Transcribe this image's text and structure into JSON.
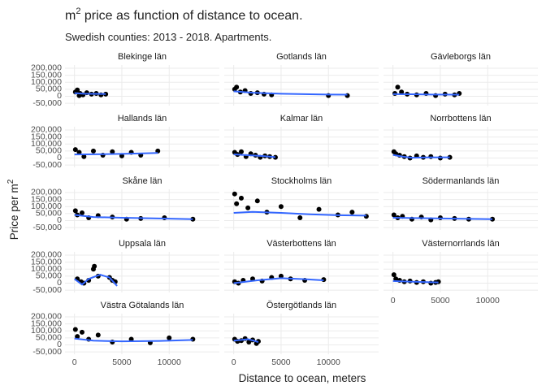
{
  "chart_data": {
    "type": "scatter",
    "title": {
      "base": "m",
      "sup": "2",
      "rest": " price as function of distance to ocean."
    },
    "subtitle": "Swedish counties: 2013 - 2018. Apartments.",
    "x_label": "Distance to ocean, meters",
    "y_label": {
      "base": "Price per m",
      "sup": "2"
    },
    "xlim": [
      -1000,
      15300
    ],
    "ylim": [
      -67000,
      223000
    ],
    "xticks": [
      0,
      5000,
      10000
    ],
    "yticks": [
      {
        "value": -50000,
        "label": "-50,000"
      },
      0,
      {
        "value": 50000,
        "label": "50,000"
      },
      {
        "value": 100000,
        "label": "100,000"
      },
      {
        "value": 150000,
        "label": "150,000"
      },
      {
        "value": 200000,
        "label": "200,000"
      }
    ],
    "grid": true,
    "point_color": "#000000",
    "line_color": "#3366ff",
    "facets": [
      {
        "name": "Blekinge län",
        "x": [
          100,
          300,
          600,
          900,
          1300,
          1800,
          2300,
          2800,
          3300,
          500
        ],
        "y": [
          30000,
          45000,
          20000,
          10000,
          25000,
          15000,
          20000,
          10000,
          15000,
          5000
        ],
        "smooth_x": [
          0,
          1000,
          2000,
          3300
        ],
        "smooth_y": [
          22000,
          18000,
          17000,
          16000
        ]
      },
      {
        "name": "Gotlands län",
        "x": [
          100,
          300,
          700,
          1200,
          1800,
          2500,
          3200,
          4000,
          10000,
          12000
        ],
        "y": [
          50000,
          65000,
          30000,
          40000,
          20000,
          25000,
          15000,
          10000,
          5000,
          5000
        ],
        "smooth_x": [
          0,
          2000,
          5000,
          10000,
          12000
        ],
        "smooth_y": [
          35000,
          25000,
          18000,
          12000,
          11000
        ]
      },
      {
        "name": "Gävleborgs län",
        "x": [
          200,
          500,
          900,
          1500,
          2500,
          3500,
          4500,
          5500,
          6500,
          7000
        ],
        "y": [
          20000,
          65000,
          30000,
          15000,
          10000,
          20000,
          5000,
          15000,
          10000,
          20000
        ],
        "smooth_x": [
          0,
          2000,
          4000,
          7000
        ],
        "smooth_y": [
          15000,
          14000,
          12000,
          11000
        ]
      },
      {
        "name": "Hallands län",
        "x": [
          100,
          500,
          1000,
          2000,
          3000,
          4000,
          5000,
          6000,
          7000,
          8800
        ],
        "y": [
          60000,
          40000,
          10000,
          50000,
          20000,
          45000,
          15000,
          40000,
          20000,
          50000
        ],
        "smooth_x": [
          0,
          3000,
          6000,
          8800
        ],
        "smooth_y": [
          25000,
          27000,
          31000,
          36000
        ]
      },
      {
        "name": "Kalmar län",
        "x": [
          100,
          400,
          800,
          1300,
          1800,
          2300,
          2800,
          3300,
          3800,
          4400
        ],
        "y": [
          40000,
          25000,
          45000,
          10000,
          30000,
          20000,
          5000,
          15000,
          10000,
          5000
        ],
        "smooth_x": [
          0,
          1500,
          3000,
          4400
        ],
        "smooth_y": [
          26000,
          20000,
          14000,
          6000
        ]
      },
      {
        "name": "Norrbottens län",
        "x": [
          100,
          300,
          700,
          1200,
          1800,
          2500,
          3200,
          4000,
          5000,
          6000
        ],
        "y": [
          45000,
          30000,
          20000,
          10000,
          0,
          15000,
          5000,
          10000,
          0,
          5000
        ],
        "smooth_x": [
          0,
          1000,
          2000,
          3500,
          6000
        ],
        "smooth_y": [
          22000,
          10000,
          2000,
          4000,
          5000
        ]
      },
      {
        "name": "Skåne län",
        "x": [
          100,
          300,
          800,
          1500,
          2500,
          4000,
          5500,
          7000,
          9500,
          12500
        ],
        "y": [
          70000,
          40000,
          55000,
          20000,
          35000,
          25000,
          10000,
          15000,
          20000,
          10000
        ],
        "smooth_x": [
          0,
          2000,
          5000,
          9000,
          12500
        ],
        "smooth_y": [
          40000,
          25000,
          20000,
          15000,
          10000
        ]
      },
      {
        "name": "Stockholms län",
        "x": [
          100,
          300,
          800,
          1500,
          2500,
          3500,
          5000,
          7000,
          9000,
          11000,
          12500,
          14000
        ],
        "y": [
          190000,
          120000,
          160000,
          90000,
          140000,
          60000,
          100000,
          20000,
          80000,
          40000,
          60000,
          30000
        ],
        "smooth_x": [
          0,
          2000,
          5000,
          8000,
          11000,
          14000
        ],
        "smooth_y": [
          55000,
          62000,
          55000,
          45000,
          38000,
          35000
        ]
      },
      {
        "name": "Södermanlands län",
        "x": [
          100,
          500,
          1000,
          2000,
          3000,
          4000,
          5000,
          6500,
          8000,
          10500
        ],
        "y": [
          40000,
          20000,
          30000,
          10000,
          25000,
          5000,
          20000,
          15000,
          10000,
          10000
        ],
        "smooth_x": [
          0,
          3000,
          6000,
          10500
        ],
        "smooth_y": [
          20000,
          17000,
          14000,
          10000
        ]
      },
      {
        "name": "Uppsala län",
        "x": [
          300,
          700,
          1000,
          1500,
          2000,
          2100,
          2500,
          3700,
          4000,
          4300
        ],
        "y": [
          30000,
          10000,
          0,
          20000,
          100000,
          120000,
          50000,
          40000,
          20000,
          10000
        ],
        "smooth_x": [
          0,
          800,
          1500,
          2700,
          3700,
          4500
        ],
        "smooth_y": [
          30000,
          -10000,
          30000,
          60000,
          40000,
          -20000
        ]
      },
      {
        "name": "Västerbottens län",
        "x": [
          100,
          500,
          1000,
          2000,
          3000,
          4000,
          5000,
          6000,
          7500,
          9500
        ],
        "y": [
          10000,
          0,
          20000,
          30000,
          15000,
          40000,
          50000,
          30000,
          20000,
          25000
        ],
        "smooth_x": [
          0,
          2500,
          5000,
          7500,
          9500
        ],
        "smooth_y": [
          0,
          20000,
          35000,
          28000,
          20000
        ]
      },
      {
        "name": "Västernorrlands län",
        "x": [
          100,
          300,
          700,
          1200,
          1800,
          2500,
          3200,
          4000,
          4500,
          4800
        ],
        "y": [
          60000,
          30000,
          20000,
          10000,
          15000,
          5000,
          10000,
          0,
          5000,
          10000
        ],
        "smooth_x": [
          0,
          2000,
          4800
        ],
        "smooth_y": [
          15000,
          10000,
          5000
        ]
      },
      {
        "name": "Västra Götalands län",
        "x": [
          100,
          300,
          800,
          1500,
          2500,
          4000,
          6000,
          8000,
          10000,
          12500
        ],
        "y": [
          110000,
          60000,
          90000,
          40000,
          70000,
          20000,
          40000,
          15000,
          50000,
          40000
        ],
        "smooth_x": [
          0,
          2000,
          5000,
          9000,
          12500
        ],
        "smooth_y": [
          45000,
          30000,
          25000,
          28000,
          35000
        ]
      },
      {
        "name": "Östergötlands län",
        "x": [
          100,
          400,
          800,
          1200,
          1600,
          2000,
          2400,
          2600
        ],
        "y": [
          40000,
          25000,
          30000,
          45000,
          20000,
          35000,
          10000,
          25000
        ],
        "smooth_x": [
          0,
          800,
          1500,
          2100,
          2600
        ],
        "smooth_y": [
          30000,
          35000,
          40000,
          30000,
          20000
        ]
      }
    ]
  }
}
